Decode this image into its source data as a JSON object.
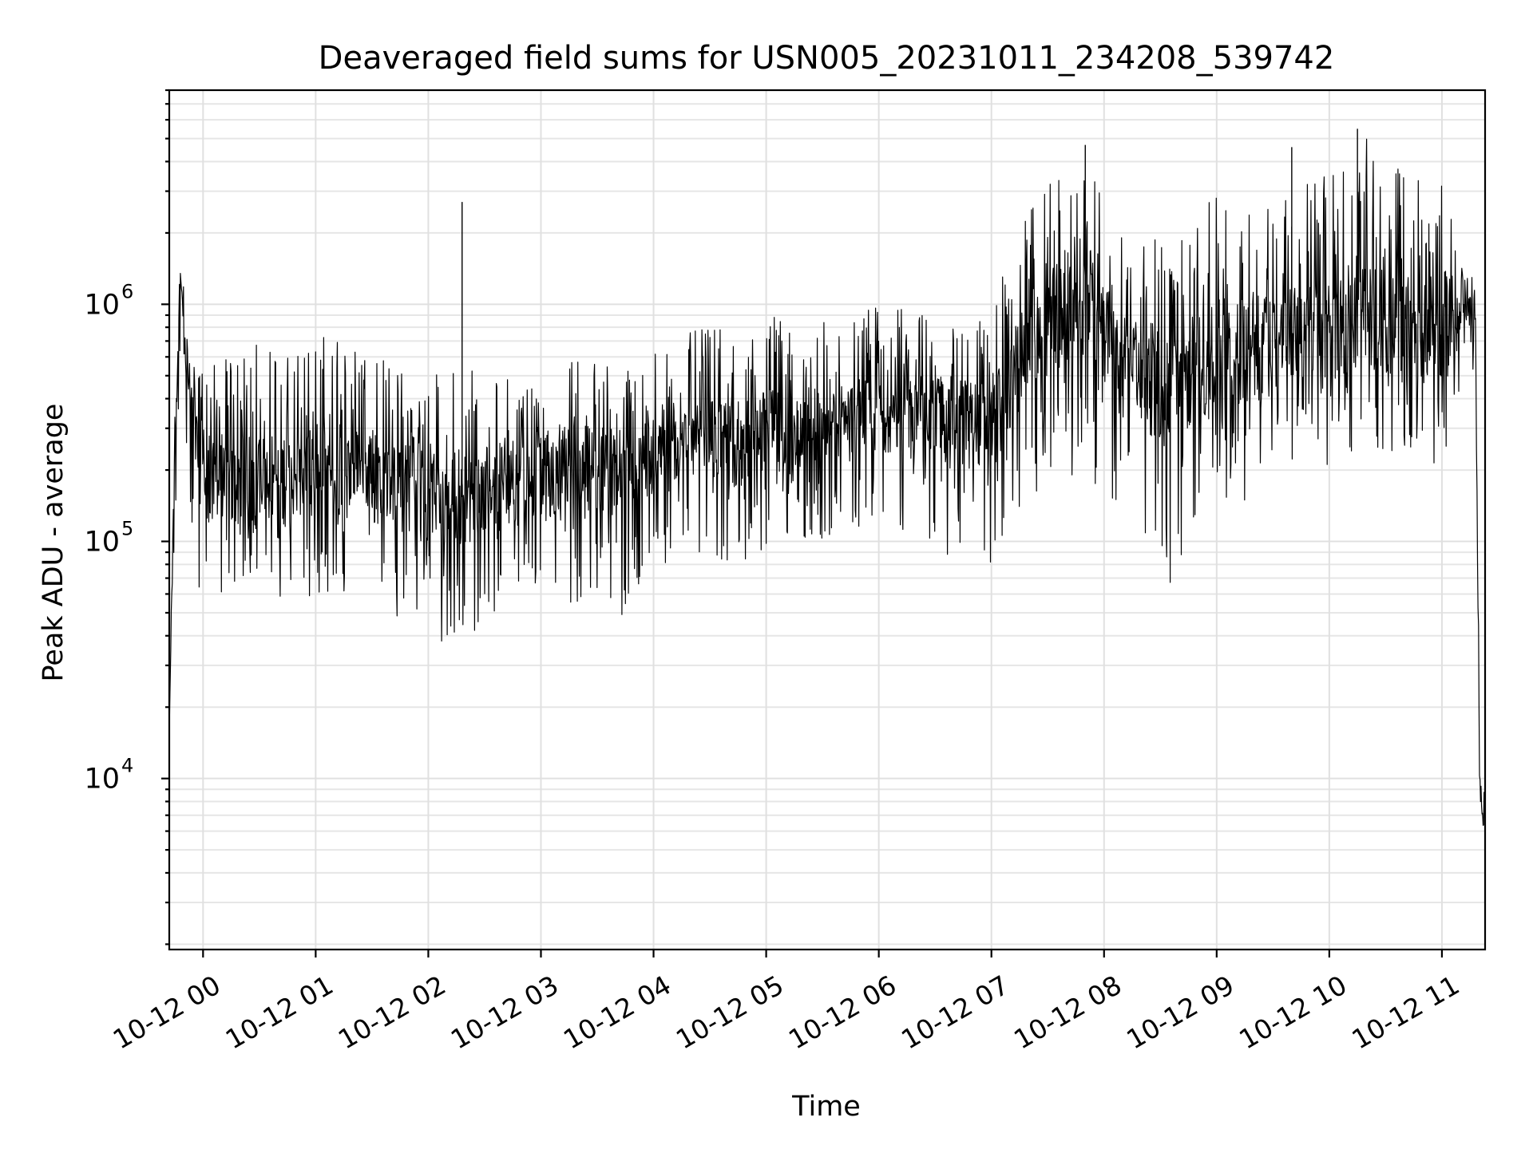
{
  "chart_data": {
    "type": "line",
    "title": "Deaveraged field sums for USN005_20231011_234208_539742",
    "xlabel": "Time",
    "ylabel": "Peak ADU - average",
    "y_scale": "log",
    "ylim": [
      1900,
      8000000
    ],
    "xlim": [
      "2023-10-11T23:42:00",
      "2023-10-12T11:23:00"
    ],
    "grid": true,
    "x_ticks": [
      {
        "t": "2023-10-12T00:00:00",
        "label": "10-12 00"
      },
      {
        "t": "2023-10-12T01:00:00",
        "label": "10-12 01"
      },
      {
        "t": "2023-10-12T02:00:00",
        "label": "10-12 02"
      },
      {
        "t": "2023-10-12T03:00:00",
        "label": "10-12 03"
      },
      {
        "t": "2023-10-12T04:00:00",
        "label": "10-12 04"
      },
      {
        "t": "2023-10-12T05:00:00",
        "label": "10-12 05"
      },
      {
        "t": "2023-10-12T06:00:00",
        "label": "10-12 06"
      },
      {
        "t": "2023-10-12T07:00:00",
        "label": "10-12 07"
      },
      {
        "t": "2023-10-12T08:00:00",
        "label": "10-12 08"
      },
      {
        "t": "2023-10-12T09:00:00",
        "label": "10-12 09"
      },
      {
        "t": "2023-10-12T10:00:00",
        "label": "10-12 10"
      },
      {
        "t": "2023-10-12T11:00:00",
        "label": "10-12 11"
      }
    ],
    "y_ticks": [
      {
        "value": 10000,
        "base": "10",
        "exp": "4"
      },
      {
        "value": 100000,
        "base": "10",
        "exp": "5"
      },
      {
        "value": 1000000,
        "base": "10",
        "exp": "6"
      }
    ],
    "series": [
      {
        "color": "#000000",
        "x": [
          "2023-10-11T23:42:00",
          "2023-10-11T23:45:00",
          "2023-10-11T23:48:00",
          "2023-10-11T23:50:00",
          "2023-10-11T23:52:00",
          "2023-10-11T23:55:00",
          "2023-10-12T00:00:00",
          "2023-10-12T00:15:00",
          "2023-10-12T00:30:00",
          "2023-10-12T00:45:00",
          "2023-10-12T01:00:00",
          "2023-10-12T01:15:00",
          "2023-10-12T01:30:00",
          "2023-10-12T01:45:00",
          "2023-10-12T02:00:00",
          "2023-10-12T02:15:00",
          "2023-10-12T02:30:00",
          "2023-10-12T02:45:00",
          "2023-10-12T03:00:00",
          "2023-10-12T03:15:00",
          "2023-10-12T03:30:00",
          "2023-10-12T03:45:00",
          "2023-10-12T04:00:00",
          "2023-10-12T04:15:00",
          "2023-10-12T04:30:00",
          "2023-10-12T04:45:00",
          "2023-10-12T05:00:00",
          "2023-10-12T05:15:00",
          "2023-10-12T05:30:00",
          "2023-10-12T05:45:00",
          "2023-10-12T06:00:00",
          "2023-10-12T06:15:00",
          "2023-10-12T06:30:00",
          "2023-10-12T06:45:00",
          "2023-10-12T07:00:00",
          "2023-10-12T07:10:00",
          "2023-10-12T07:20:00",
          "2023-10-12T07:35:00",
          "2023-10-12T07:50:00",
          "2023-10-12T08:05:00",
          "2023-10-12T08:20:00",
          "2023-10-12T08:35:00",
          "2023-10-12T08:50:00",
          "2023-10-12T09:05:00",
          "2023-10-12T09:20:00",
          "2023-10-12T09:35:00",
          "2023-10-12T09:50:00",
          "2023-10-12T10:05:00",
          "2023-10-12T10:20:00",
          "2023-10-12T10:35:00",
          "2023-10-12T10:50:00",
          "2023-10-12T11:05:00",
          "2023-10-12T11:12:00",
          "2023-10-12T11:16:00",
          "2023-10-12T11:18:00",
          "2023-10-12T11:20:00",
          "2023-10-12T11:23:00"
        ],
        "y": [
          15000,
          280000,
          1300000,
          800000,
          450000,
          300000,
          180000,
          170000,
          190000,
          180000,
          200000,
          190000,
          210000,
          170000,
          160000,
          150000,
          170000,
          180000,
          190000,
          200000,
          210000,
          180000,
          220000,
          260000,
          270000,
          250000,
          300000,
          280000,
          310000,
          320000,
          330000,
          350000,
          340000,
          330000,
          300000,
          450000,
          700000,
          900000,
          1000000,
          650000,
          500000,
          450000,
          550000,
          600000,
          650000,
          700000,
          800000,
          850000,
          900000,
          800000,
          750000,
          850000,
          950000,
          1000000,
          700000,
          10000,
          5000
        ],
        "low": [
          15000,
          120000,
          200000,
          150000,
          90000,
          70000,
          60000,
          55000,
          60000,
          55000,
          60000,
          50000,
          55000,
          45000,
          40000,
          30000,
          45000,
          60000,
          60000,
          55000,
          50000,
          45000,
          70000,
          90000,
          80000,
          75000,
          95000,
          90000,
          100000,
          110000,
          105000,
          100000,
          90000,
          85000,
          70000,
          120000,
          150000,
          200000,
          180000,
          140000,
          100000,
          60000,
          120000,
          140000,
          150000,
          200000,
          220000,
          200000,
          250000,
          220000,
          180000,
          150000,
          500000,
          600000,
          300000,
          5000,
          4000
        ],
        "high": [
          15000,
          500000,
          1400000,
          900000,
          700000,
          600000,
          550000,
          600000,
          700000,
          650000,
          800000,
          700000,
          650000,
          550000,
          500000,
          600000,
          500000,
          500000,
          550000,
          600000,
          600000,
          550000,
          650000,
          750000,
          800000,
          750000,
          900000,
          850000,
          950000,
          950000,
          1000000,
          950000,
          900000,
          850000,
          900000,
          1700000,
          2500000,
          3500000,
          4000000,
          2500000,
          2000000,
          1800000,
          2500000,
          3000000,
          3200000,
          3000000,
          3500000,
          4000000,
          5000000,
          4000000,
          3500000,
          3000000,
          1300000,
          1300000,
          1100000,
          16000,
          8000
        ],
        "spikes": [
          {
            "t": "2023-10-12T02:18:00",
            "value": 2700000
          },
          {
            "t": "2023-10-12T07:50:00",
            "value": 4700000
          },
          {
            "t": "2023-10-12T09:40:00",
            "value": 4600000
          },
          {
            "t": "2023-10-12T10:15:00",
            "value": 5500000
          }
        ]
      }
    ]
  }
}
